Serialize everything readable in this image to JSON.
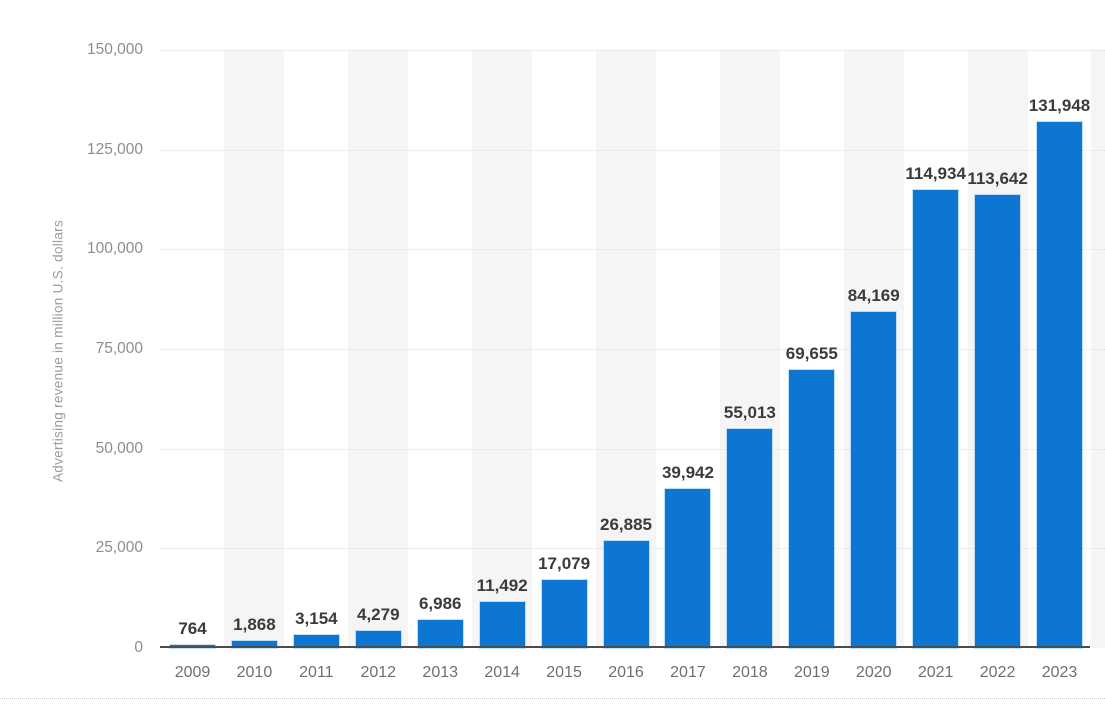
{
  "chart_data": {
    "type": "bar",
    "title": "",
    "categories": [
      "2009",
      "2010",
      "2011",
      "2012",
      "2013",
      "2014",
      "2015",
      "2016",
      "2017",
      "2018",
      "2019",
      "2020",
      "2021",
      "2022",
      "2023"
    ],
    "values": [
      764,
      1868,
      3154,
      4279,
      6986,
      11492,
      17079,
      26885,
      39942,
      55013,
      69655,
      84169,
      114934,
      113642,
      131948
    ],
    "value_labels": [
      "764",
      "1,868",
      "3,154",
      "4,279",
      "6,986",
      "11,492",
      "17,079",
      "26,885",
      "39,942",
      "55,013",
      "69,655",
      "84,169",
      "114,934",
      "113,642",
      "131,948"
    ],
    "xlabel": "",
    "ylabel": "Advertising revenue in million U.S. dollars",
    "ylim": [
      0,
      150000
    ],
    "yticks": [
      {
        "value": 0,
        "label": "0"
      },
      {
        "value": 25000,
        "label": "25,000"
      },
      {
        "value": 50000,
        "label": "50,000"
      },
      {
        "value": 75000,
        "label": "75,000"
      },
      {
        "value": 100000,
        "label": "100,000"
      },
      {
        "value": 125000,
        "label": "125,000"
      },
      {
        "value": 150000,
        "label": "150,000"
      }
    ],
    "grid": "horizontal-dotted",
    "legend": "none",
    "column_stripes": "alternating behind even columns (2010, 2012, ... 2022) plus partial band at right edge"
  },
  "colors": {
    "bar": "#0d76d2",
    "value_label": "#3b3b3b",
    "year_label": "#6f6f6f",
    "tick_label": "#8d8d8d",
    "axis_title": "#9c9c9c",
    "axis_line": "#4d4d4d",
    "gridline": "#dedede",
    "stripe": "#f5f5f6",
    "bottom_rule": "#cccccc",
    "background": "#ffffff"
  }
}
